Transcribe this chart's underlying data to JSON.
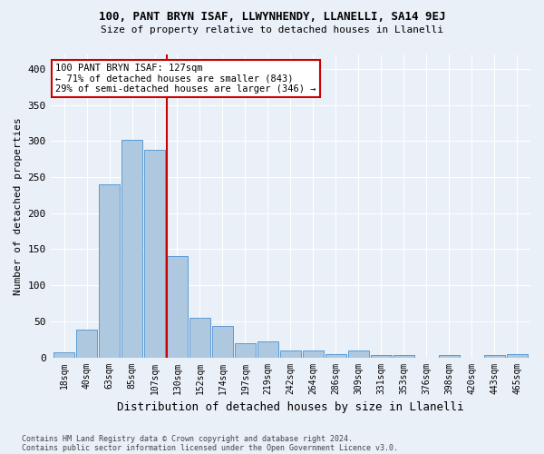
{
  "title1": "100, PANT BRYN ISAF, LLWYNHENDY, LLANELLI, SA14 9EJ",
  "title2": "Size of property relative to detached houses in Llanelli",
  "xlabel": "Distribution of detached houses by size in Llanelli",
  "ylabel": "Number of detached properties",
  "footnote1": "Contains HM Land Registry data © Crown copyright and database right 2024.",
  "footnote2": "Contains public sector information licensed under the Open Government Licence v3.0.",
  "bar_labels": [
    "18sqm",
    "40sqm",
    "63sqm",
    "85sqm",
    "107sqm",
    "130sqm",
    "152sqm",
    "174sqm",
    "197sqm",
    "219sqm",
    "242sqm",
    "264sqm",
    "286sqm",
    "309sqm",
    "331sqm",
    "353sqm",
    "376sqm",
    "398sqm",
    "420sqm",
    "443sqm",
    "465sqm"
  ],
  "bar_values": [
    7,
    38,
    240,
    302,
    288,
    141,
    55,
    44,
    20,
    22,
    9,
    10,
    5,
    10,
    3,
    3,
    0,
    3,
    0,
    3,
    4
  ],
  "bar_color": "#aec8e0",
  "bar_edge_color": "#5b9bd5",
  "highlight_bar_index": 5,
  "annotation_text1": "100 PANT BRYN ISAF: 127sqm",
  "annotation_text2": "← 71% of detached houses are smaller (843)",
  "annotation_text3": "29% of semi-detached houses are larger (346) →",
  "annotation_box_color": "#ffffff",
  "annotation_box_edge": "#cc0000",
  "vline_color": "#cc0000",
  "bg_color": "#eaf0f7",
  "ylim": [
    0,
    420
  ],
  "yticks": [
    0,
    50,
    100,
    150,
    200,
    250,
    300,
    350,
    400
  ]
}
